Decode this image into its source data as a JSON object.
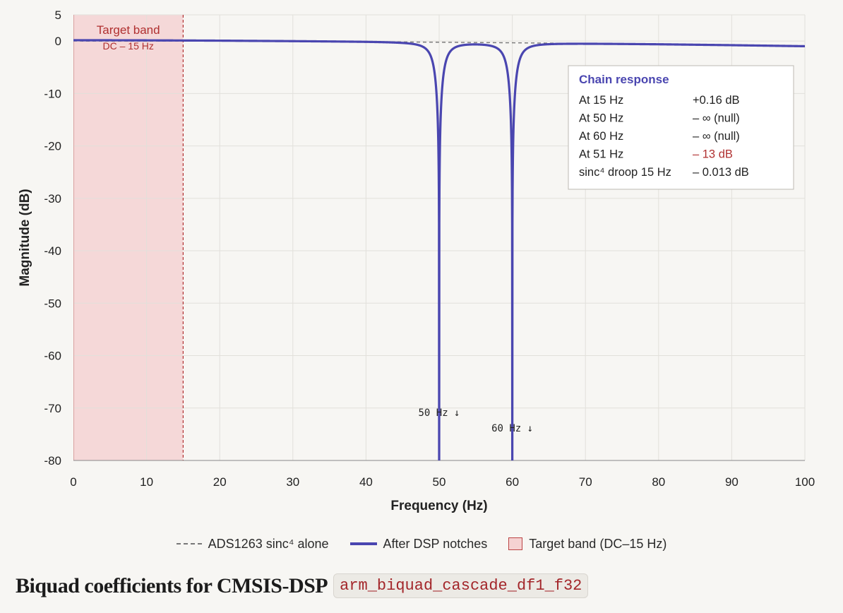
{
  "chart_data": {
    "type": "line",
    "xlabel": "Frequency (Hz)",
    "ylabel": "Magnitude (dB)",
    "xlim": [
      0,
      100
    ],
    "ylim": [
      -80,
      5
    ],
    "x_ticks": [
      "0",
      "10",
      "20",
      "30",
      "40",
      "50",
      "60",
      "70",
      "80",
      "90",
      "100"
    ],
    "y_ticks": [
      "5",
      "0",
      "-10",
      "-20",
      "-30",
      "-40",
      "-50",
      "-60",
      "-70",
      "-80"
    ],
    "x_tick_values": [
      0,
      10,
      20,
      30,
      40,
      50,
      60,
      70,
      80,
      90,
      100
    ],
    "y_tick_values": [
      5,
      0,
      -10,
      -20,
      -30,
      -40,
      -50,
      -60,
      -70,
      -80
    ],
    "grid": true,
    "target_band": {
      "from": 0,
      "to": 15,
      "label": "Target band",
      "sublabel": "DC – 15 Hz"
    },
    "series": [
      {
        "name": "ADS1263 sinc⁴ alone",
        "style": "dashed",
        "color": "#777777",
        "x": [
          0,
          10,
          15,
          20,
          30,
          40,
          50,
          60,
          70,
          80,
          90,
          100
        ],
        "y": [
          0,
          -0.01,
          -0.013,
          -0.02,
          -0.06,
          -0.12,
          -0.22,
          -0.33,
          -0.46,
          -0.6,
          -0.78,
          -0.98
        ]
      },
      {
        "name": "After DSP notches",
        "style": "solid",
        "color": "#4a46b0",
        "notches": [
          50,
          60
        ],
        "notch_floor": -80
      }
    ],
    "annotations": [
      {
        "text": "50 Hz ↓",
        "x": 50,
        "y": -71.5
      },
      {
        "text": "60 Hz ↓",
        "x": 60,
        "y": -74.5
      }
    ]
  },
  "info_box": {
    "title": "Chain response",
    "rows": [
      {
        "label": "At 15 Hz",
        "value": "+0.16 dB",
        "highlight": false
      },
      {
        "label": "At 50 Hz",
        "value": "– ∞  (null)",
        "highlight": false
      },
      {
        "label": "At 60 Hz",
        "value": "– ∞  (null)",
        "highlight": false
      },
      {
        "label": "At 51 Hz",
        "value": "– 13 dB",
        "highlight": true
      },
      {
        "label": "sinc⁴ droop 15 Hz",
        "value": "– 0.013 dB",
        "highlight": false
      }
    ]
  },
  "legend": {
    "sinc": "ADS1263 sinc⁴ alone",
    "notch": "After DSP notches",
    "band": "Target band (DC–15 Hz)"
  },
  "heading": {
    "text": "Biquad coefficients for CMSIS-DSP",
    "code": "arm_biquad_cascade_df1_f32"
  },
  "colors": {
    "accent": "#4a46b0",
    "band_fill": "#f5d8d8",
    "band_text": "#b03030",
    "highlight": "#b03030"
  }
}
